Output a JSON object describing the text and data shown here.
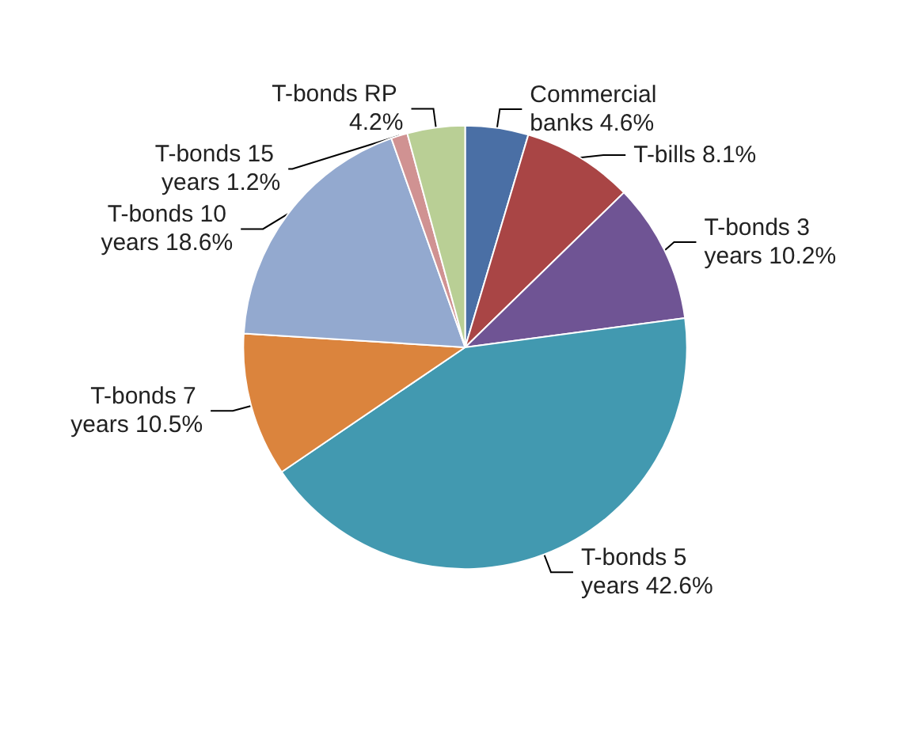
{
  "chart_data": {
    "type": "pie",
    "categories": [
      "Commercial banks",
      "T-bills",
      "T-bonds 3 years",
      "T-bonds 5 years",
      "T-bonds 7 years",
      "T-bonds 10 years",
      "T-bonds 15 years",
      "T-bonds RP"
    ],
    "values": [
      4.6,
      8.1,
      10.2,
      42.6,
      10.5,
      18.6,
      1.2,
      4.2
    ],
    "value_labels": [
      "4.6%",
      "8.1%",
      "10.2%",
      "42.6%",
      "10.5%",
      "18.6%",
      "1.2%",
      "4.2%"
    ],
    "colors": [
      "#4a6fa5",
      "#a94545",
      "#6f5494",
      "#4299b0",
      "#db843d",
      "#93a9cf",
      "#d09292",
      "#b9cf95"
    ],
    "legend": false
  }
}
